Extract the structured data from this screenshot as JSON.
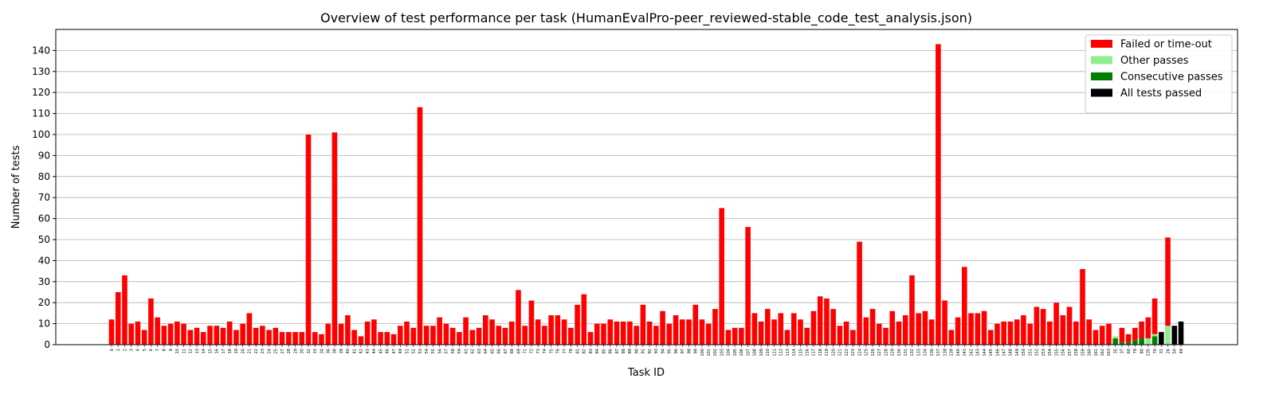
{
  "chart_data": {
    "type": "stacked_bar",
    "title": "Overview of test performance per task (HumanEvalPro-peer_reviewed-stable_code_test_analysis.json)",
    "x_label": "Task ID",
    "y_label": "Number of tests",
    "categories": [
      "0",
      "1",
      "2",
      "3",
      "4",
      "5",
      "6",
      "7",
      "8",
      "9",
      "10",
      "11",
      "12",
      "13",
      "14",
      "15",
      "16",
      "17",
      "18",
      "19",
      "20",
      "21",
      "22",
      "23",
      "24",
      "25",
      "27",
      "28",
      "29",
      "30",
      "32",
      "33",
      "34",
      "36",
      "38",
      "39",
      "40",
      "41",
      "42",
      "43",
      "44",
      "45",
      "46",
      "47",
      "49",
      "51",
      "52",
      "53",
      "54",
      "55",
      "56",
      "57",
      "58",
      "59",
      "61",
      "62",
      "63",
      "64",
      "65",
      "66",
      "67",
      "68",
      "69",
      "71",
      "72",
      "73",
      "74",
      "75",
      "76",
      "77",
      "78",
      "81",
      "82",
      "83",
      "84",
      "85",
      "86",
      "87",
      "88",
      "89",
      "90",
      "91",
      "92",
      "93",
      "94",
      "95",
      "96",
      "97",
      "98",
      "99",
      "100",
      "101",
      "102",
      "103",
      "104",
      "105",
      "106",
      "107",
      "108",
      "109",
      "110",
      "111",
      "112",
      "113",
      "114",
      "115",
      "116",
      "117",
      "118",
      "119",
      "120",
      "121",
      "122",
      "123",
      "124",
      "125",
      "126",
      "127",
      "128",
      "129",
      "130",
      "131",
      "132",
      "133",
      "134",
      "136",
      "137",
      "138",
      "139",
      "140",
      "141",
      "142",
      "143",
      "144",
      "145",
      "146",
      "147",
      "148",
      "149",
      "150",
      "151",
      "152",
      "153",
      "154",
      "155",
      "156",
      "157",
      "158",
      "159",
      "160",
      "161",
      "162",
      "163",
      "35",
      "37",
      "60",
      "79",
      "80",
      "135",
      "70",
      "31",
      "26",
      "50",
      "48"
    ],
    "series": [
      {
        "name": "Failed or time-out",
        "color": "#ff0000",
        "values": [
          12,
          25,
          33,
          10,
          11,
          7,
          22,
          13,
          9,
          10,
          11,
          10,
          7,
          8,
          6,
          9,
          9,
          8,
          11,
          7,
          10,
          15,
          8,
          9,
          7,
          8,
          6,
          6,
          6,
          6,
          100,
          6,
          5,
          10,
          101,
          10,
          14,
          7,
          4,
          11,
          12,
          6,
          6,
          5,
          9,
          11,
          8,
          113,
          9,
          9,
          13,
          10,
          8,
          6,
          13,
          7,
          8,
          14,
          12,
          9,
          8,
          11,
          26,
          9,
          21,
          12,
          9,
          14,
          14,
          12,
          8,
          19,
          24,
          6,
          10,
          10,
          12,
          11,
          11,
          11,
          9,
          19,
          11,
          9,
          16,
          10,
          14,
          12,
          12,
          19,
          12,
          10,
          17,
          65,
          7,
          8,
          8,
          56,
          15,
          11,
          17,
          12,
          15,
          7,
          15,
          12,
          8,
          16,
          23,
          22,
          17,
          9,
          11,
          7,
          49,
          13,
          17,
          10,
          8,
          16,
          11,
          14,
          33,
          15,
          16,
          12,
          143,
          21,
          7,
          13,
          37,
          15,
          15,
          16,
          7,
          10,
          11,
          11,
          12,
          14,
          10,
          18,
          17,
          11,
          20,
          14,
          18,
          11,
          36,
          12,
          7,
          9,
          10,
          0,
          7,
          4,
          6,
          8,
          10,
          17,
          0,
          42,
          0,
          0
        ]
      },
      {
        "name": "Other passes",
        "color": "#90ee90",
        "values": [
          0,
          0,
          0,
          0,
          0,
          0,
          0,
          0,
          0,
          0,
          0,
          0,
          0,
          0,
          0,
          0,
          0,
          0,
          0,
          0,
          0,
          0,
          0,
          0,
          0,
          0,
          0,
          0,
          0,
          0,
          0,
          0,
          0,
          0,
          0,
          0,
          0,
          0,
          0,
          0,
          0,
          0,
          0,
          0,
          0,
          0,
          0,
          0,
          0,
          0,
          0,
          0,
          0,
          0,
          0,
          0,
          0,
          0,
          0,
          0,
          0,
          0,
          0,
          0,
          0,
          0,
          0,
          0,
          0,
          0,
          0,
          0,
          0,
          0,
          0,
          0,
          0,
          0,
          0,
          0,
          0,
          0,
          0,
          0,
          0,
          0,
          0,
          0,
          0,
          0,
          0,
          0,
          0,
          0,
          0,
          0,
          0,
          0,
          0,
          0,
          0,
          0,
          0,
          0,
          0,
          0,
          0,
          0,
          0,
          0,
          0,
          0,
          0,
          0,
          0,
          0,
          0,
          0,
          0,
          0,
          0,
          0,
          0,
          0,
          0,
          0,
          0,
          0,
          0,
          0,
          0,
          0,
          0,
          0,
          0,
          0,
          0,
          0,
          0,
          0,
          0,
          0,
          0,
          0,
          0,
          0,
          0,
          0,
          0,
          0,
          0,
          0,
          0,
          1,
          0,
          0,
          0,
          0,
          3,
          1,
          0,
          9,
          0,
          0
        ]
      },
      {
        "name": "Consecutive passes",
        "color": "#008000",
        "values": [
          0,
          0,
          0,
          0,
          0,
          0,
          0,
          0,
          0,
          0,
          0,
          0,
          0,
          0,
          0,
          0,
          0,
          0,
          0,
          0,
          0,
          0,
          0,
          0,
          0,
          0,
          0,
          0,
          0,
          0,
          0,
          0,
          0,
          0,
          0,
          0,
          0,
          0,
          0,
          0,
          0,
          0,
          0,
          0,
          0,
          0,
          0,
          0,
          0,
          0,
          0,
          0,
          0,
          0,
          0,
          0,
          0,
          0,
          0,
          0,
          0,
          0,
          0,
          0,
          0,
          0,
          0,
          0,
          0,
          0,
          0,
          0,
          0,
          0,
          0,
          0,
          0,
          0,
          0,
          0,
          0,
          0,
          0,
          0,
          0,
          0,
          0,
          0,
          0,
          0,
          0,
          0,
          0,
          0,
          0,
          0,
          0,
          0,
          0,
          0,
          0,
          0,
          0,
          0,
          0,
          0,
          0,
          0,
          0,
          0,
          0,
          0,
          0,
          0,
          0,
          0,
          0,
          0,
          0,
          0,
          0,
          0,
          0,
          0,
          0,
          0,
          0,
          0,
          0,
          0,
          0,
          0,
          0,
          0,
          0,
          0,
          0,
          0,
          0,
          0,
          0,
          0,
          0,
          0,
          0,
          0,
          0,
          0,
          0,
          0,
          0,
          0,
          0,
          3,
          1,
          1,
          2,
          3,
          0,
          4,
          0,
          0,
          0,
          0
        ]
      },
      {
        "name": "All tests passed",
        "color": "#000000",
        "values": [
          0,
          0,
          0,
          0,
          0,
          0,
          0,
          0,
          0,
          0,
          0,
          0,
          0,
          0,
          0,
          0,
          0,
          0,
          0,
          0,
          0,
          0,
          0,
          0,
          0,
          0,
          0,
          0,
          0,
          0,
          0,
          0,
          0,
          0,
          0,
          0,
          0,
          0,
          0,
          0,
          0,
          0,
          0,
          0,
          0,
          0,
          0,
          0,
          0,
          0,
          0,
          0,
          0,
          0,
          0,
          0,
          0,
          0,
          0,
          0,
          0,
          0,
          0,
          0,
          0,
          0,
          0,
          0,
          0,
          0,
          0,
          0,
          0,
          0,
          0,
          0,
          0,
          0,
          0,
          0,
          0,
          0,
          0,
          0,
          0,
          0,
          0,
          0,
          0,
          0,
          0,
          0,
          0,
          0,
          0,
          0,
          0,
          0,
          0,
          0,
          0,
          0,
          0,
          0,
          0,
          0,
          0,
          0,
          0,
          0,
          0,
          0,
          0,
          0,
          0,
          0,
          0,
          0,
          0,
          0,
          0,
          0,
          0,
          0,
          0,
          0,
          0,
          0,
          0,
          0,
          0,
          0,
          0,
          0,
          0,
          0,
          0,
          0,
          0,
          0,
          0,
          0,
          0,
          0,
          0,
          0,
          0,
          0,
          0,
          0,
          0,
          0,
          0,
          0,
          0,
          0,
          0,
          0,
          0,
          0,
          6,
          0,
          9,
          11
        ]
      }
    ],
    "ylim": [
      0,
      150
    ],
    "yticks": [
      0,
      10,
      20,
      30,
      40,
      50,
      60,
      70,
      80,
      90,
      100,
      110,
      120,
      130,
      140
    ],
    "grid": true,
    "legend": "upper right"
  }
}
